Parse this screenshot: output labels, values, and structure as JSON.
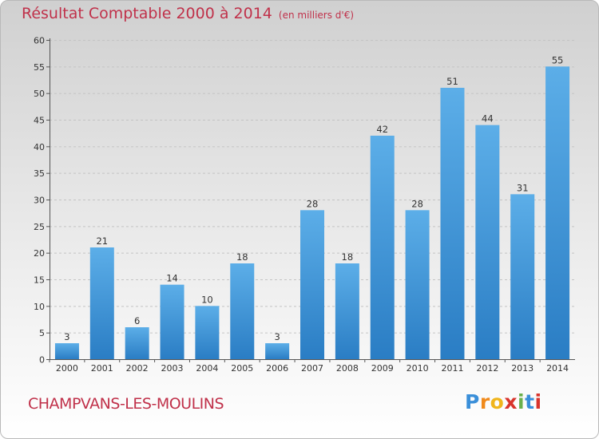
{
  "chart_data": {
    "type": "bar",
    "title": "Résultat Comptable 2000 à 2014",
    "unit": "(en milliers d'€)",
    "categories": [
      "2000",
      "2001",
      "2002",
      "2003",
      "2004",
      "2005",
      "2006",
      "2007",
      "2008",
      "2009",
      "2010",
      "2011",
      "2012",
      "2013",
      "2014"
    ],
    "values": [
      3,
      21,
      6,
      14,
      10,
      18,
      3,
      28,
      18,
      42,
      28,
      51,
      44,
      31,
      55
    ],
    "ylim": [
      0,
      60
    ],
    "yticks": [
      0,
      5,
      10,
      15,
      20,
      25,
      30,
      35,
      40,
      45,
      50,
      55,
      60
    ],
    "xlabel": "",
    "ylabel": "",
    "grid": true
  },
  "commune": "CHAMPVANS-LES-MOULINS",
  "brand": {
    "letters": [
      "P",
      "r",
      "o",
      "x",
      "i",
      "t",
      "i"
    ],
    "colors": [
      "#3a8fd9",
      "#f08a1c",
      "#f0b51c",
      "#d8342c",
      "#6ab04c",
      "#3a8fd9",
      "#d8342c"
    ]
  },
  "colors": {
    "title": "#c0314a",
    "bar_top": "#5caee8",
    "bar_bottom": "#2a7dc4"
  }
}
